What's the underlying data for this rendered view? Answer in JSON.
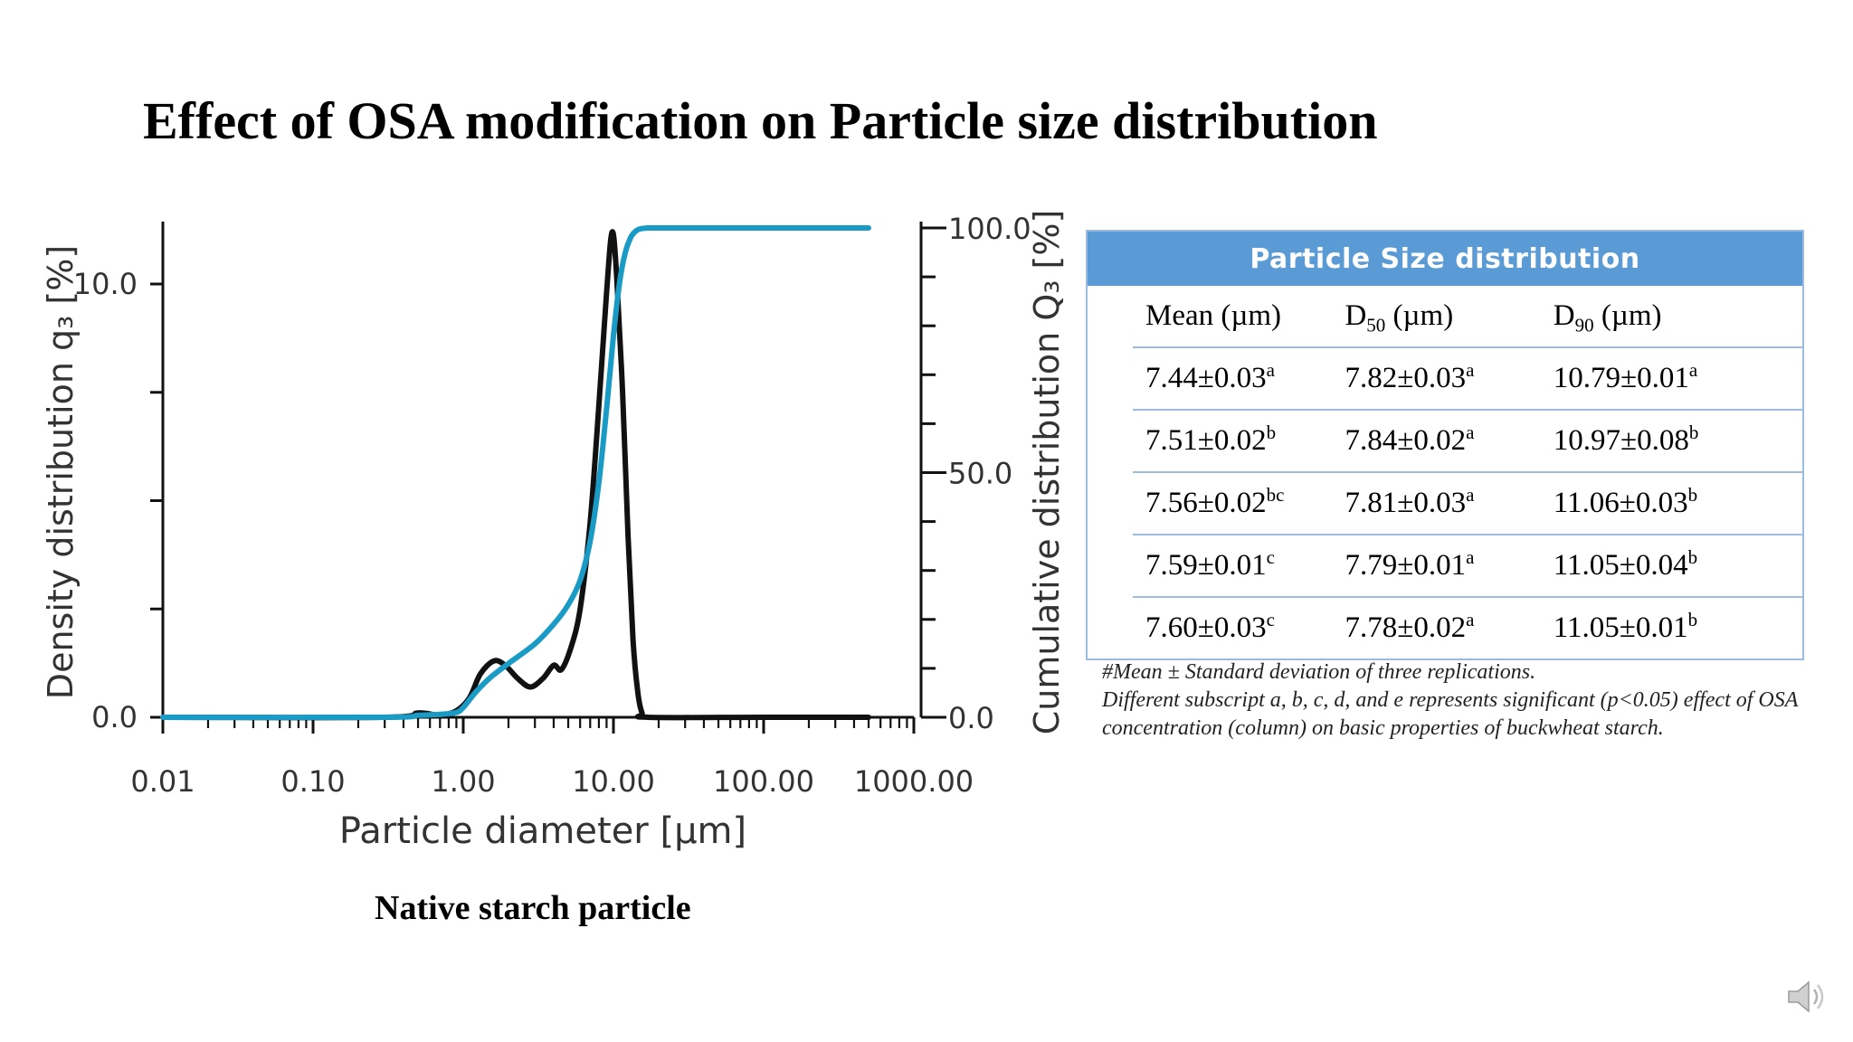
{
  "slide": {
    "title": "Effect of OSA modification on Particle size distribution",
    "caption": "Native starch particle"
  },
  "chart_data": {
    "type": "line",
    "xlabel": "Particle diameter [µm]",
    "ylabel_left": "Density distribution q₃ [%]",
    "ylabel_right": "Cumulative distribution Q₃ [%]",
    "x_scale": "log",
    "x_ticks": [
      "0.01",
      "0.10",
      "1.00",
      "10.00",
      "100.00",
      "1000.00"
    ],
    "y_left_ticks": [
      "0.0",
      "10.0"
    ],
    "y_right_ticks": [
      "0.0",
      "50.0",
      "100.0"
    ],
    "xlim": [
      0.01,
      1000
    ],
    "y_left_lim": [
      0,
      10
    ],
    "y_right_lim": [
      0,
      100
    ],
    "colors": {
      "density": "#111111",
      "cumulative": "#1a9bc6"
    },
    "series": [
      {
        "axis": "left",
        "color": "#111111",
        "x": [
          0.01,
          0.3,
          0.5,
          0.7,
          0.9,
          1.1,
          1.3,
          1.6,
          1.9,
          2.3,
          2.8,
          3.4,
          4.0,
          4.5,
          5.2,
          6.0,
          7.0,
          8.0,
          9.0,
          9.8,
          10.5,
          11.5,
          12.5,
          13.5,
          14.5,
          15.5,
          17.0,
          100,
          500
        ],
        "y": [
          0,
          0,
          0.1,
          0.05,
          0.15,
          0.45,
          1.0,
          1.3,
          1.2,
          0.9,
          0.7,
          0.9,
          1.2,
          1.1,
          1.6,
          2.5,
          4.5,
          7.2,
          9.8,
          11.2,
          10.2,
          7.5,
          4.2,
          1.8,
          0.6,
          0.1,
          0,
          0,
          0
        ]
      },
      {
        "axis": "right",
        "color": "#1a9bc6",
        "x": [
          0.01,
          0.3,
          0.5,
          0.7,
          0.9,
          1.0,
          1.2,
          1.5,
          2.0,
          3.0,
          4.0,
          5.0,
          6.0,
          7.0,
          8.0,
          9.0,
          10.0,
          11.0,
          12.0,
          13.0,
          14.0,
          15.0,
          17.0,
          20.0,
          100,
          500
        ],
        "y": [
          0,
          0,
          0.4,
          0.6,
          1.0,
          2.0,
          5.0,
          8.0,
          11.0,
          15.0,
          19.0,
          23.0,
          28.0,
          36.0,
          48.0,
          63.0,
          78.0,
          89.0,
          95.0,
          98.0,
          99.3,
          99.8,
          100,
          100,
          100,
          100
        ]
      }
    ]
  },
  "table": {
    "title": "Particle Size distribution",
    "headers": [
      {
        "main": "Mean (µm)",
        "sub": ""
      },
      {
        "main": "D",
        "sub": "50",
        "unit": " (µm)"
      },
      {
        "main": "D",
        "sub": "90",
        "unit": " (µm)"
      }
    ],
    "rows": [
      [
        {
          "v": "7.44±0.03",
          "s": "a"
        },
        {
          "v": "7.82±0.03",
          "s": "a"
        },
        {
          "v": "10.79±0.01",
          "s": "a"
        }
      ],
      [
        {
          "v": "7.51±0.02",
          "s": "b"
        },
        {
          "v": "7.84±0.02",
          "s": "a"
        },
        {
          "v": "10.97±0.08",
          "s": "b"
        }
      ],
      [
        {
          "v": "7.56±0.02",
          "s": "bc"
        },
        {
          "v": "7.81±0.03",
          "s": "a"
        },
        {
          "v": "11.06±0.03",
          "s": "b"
        }
      ],
      [
        {
          "v": "7.59±0.01",
          "s": "c"
        },
        {
          "v": "7.79±0.01",
          "s": "a"
        },
        {
          "v": "11.05±0.04",
          "s": "b"
        }
      ],
      [
        {
          "v": "7.60±0.03",
          "s": "c"
        },
        {
          "v": "7.78±0.02",
          "s": "a"
        },
        {
          "v": "11.05±0.01",
          "s": "b"
        }
      ]
    ],
    "footnote_1": "#Mean ± Standard deviation of three replications.",
    "footnote_2": "Different subscript a, b, c, d, and e represents significant (p<0.05) effect of OSA concentration (column) on basic properties of buckwheat starch."
  },
  "icons": {
    "speaker": "speaker-icon"
  }
}
